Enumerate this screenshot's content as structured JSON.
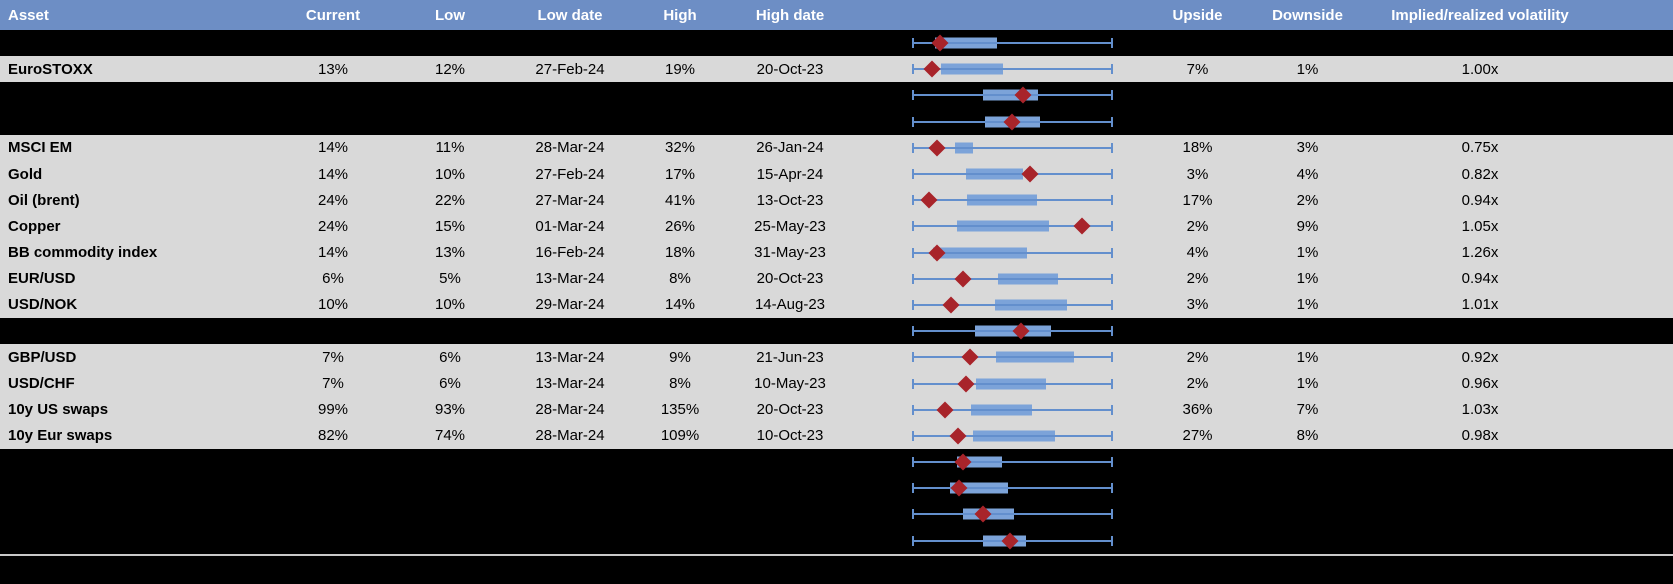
{
  "colors": {
    "header_bg": "#6d8ec5",
    "header_text": "#ffffff",
    "row_light_bg": "#d9d9d9",
    "row_dark_bg": "#000000",
    "box_fill": "#7ca3d9",
    "whisker_line": "#638fcd",
    "marker_diamond": "#a8242a",
    "bottom_separator": "#c9c9c9"
  },
  "chart_data": {
    "type": "table",
    "note": "Implied volatility table; each row has an embedded horizontal box-whisker plot with a red diamond marker (current level). Box/marker positions are normalized 0-1 across the plot axis; whiskers span the full axis on every row.",
    "columns": {
      "asset": "Asset",
      "current": "Current",
      "low": "Low",
      "low_date": "Low date",
      "high": "High",
      "high_date": "High date",
      "upside": "Upside",
      "downside": "Downside",
      "vol": "Implied/realized volatility"
    },
    "rows": [
      {
        "type": "spacer",
        "plot": {
          "box": [
            0.111,
            0.422
          ],
          "marker": 0.136
        }
      },
      {
        "type": "data",
        "asset": "EuroSTOXX",
        "current": "13%",
        "low": "12%",
        "low_date": "27-Feb-24",
        "high": "19%",
        "high_date": "20-Oct-23",
        "upside": "7%",
        "downside": "1%",
        "vol": "1.00x",
        "plot": {
          "box": [
            0.141,
            0.452
          ],
          "marker": 0.095
        }
      },
      {
        "type": "spacer",
        "plot": {
          "box": [
            0.352,
            0.628
          ],
          "marker": 0.553
        }
      },
      {
        "type": "spacer",
        "plot": {
          "box": [
            0.362,
            0.638
          ],
          "marker": 0.497
        }
      },
      {
        "type": "data",
        "asset": "MSCI EM",
        "current": "14%",
        "low": "11%",
        "low_date": "28-Mar-24",
        "high": "32%",
        "high_date": "26-Jan-24",
        "upside": "18%",
        "downside": "3%",
        "vol": "0.75x",
        "plot": {
          "box": [
            0.211,
            0.302
          ],
          "marker": 0.121
        }
      },
      {
        "type": "data",
        "asset": "Gold",
        "current": "14%",
        "low": "10%",
        "low_date": "27-Feb-24",
        "high": "17%",
        "high_date": "15-Apr-24",
        "upside": "3%",
        "downside": "4%",
        "vol": "0.82x",
        "plot": {
          "box": [
            0.266,
            0.553
          ],
          "marker": 0.588
        }
      },
      {
        "type": "data",
        "asset": "Oil (brent)",
        "current": "24%",
        "low": "22%",
        "low_date": "27-Mar-24",
        "high": "41%",
        "high_date": "13-Oct-23",
        "upside": "17%",
        "downside": "2%",
        "vol": "0.94x",
        "plot": {
          "box": [
            0.271,
            0.623
          ],
          "marker": 0.08
        }
      },
      {
        "type": "data",
        "asset": "Copper",
        "current": "24%",
        "low": "15%",
        "low_date": "01-Mar-24",
        "high": "26%",
        "high_date": "25-May-23",
        "upside": "2%",
        "downside": "9%",
        "vol": "1.05x",
        "plot": {
          "box": [
            0.221,
            0.683
          ],
          "marker": 0.849
        }
      },
      {
        "type": "data",
        "asset": "BB commodity index",
        "current": "14%",
        "low": "13%",
        "low_date": "16-Feb-24",
        "high": "18%",
        "high_date": "31-May-23",
        "upside": "4%",
        "downside": "1%",
        "vol": "1.26x",
        "plot": {
          "box": [
            0.101,
            0.573
          ],
          "marker": 0.121
        }
      },
      {
        "type": "data",
        "asset": "EUR/USD",
        "current": "6%",
        "low": "5%",
        "low_date": "13-Mar-24",
        "high": "8%",
        "high_date": "20-Oct-23",
        "upside": "2%",
        "downside": "1%",
        "vol": "0.94x",
        "plot": {
          "box": [
            0.427,
            0.729
          ],
          "marker": 0.251
        }
      },
      {
        "type": "data",
        "asset": "USD/NOK",
        "current": "10%",
        "low": "10%",
        "low_date": "29-Mar-24",
        "high": "14%",
        "high_date": "14-Aug-23",
        "upside": "3%",
        "downside": "1%",
        "vol": "1.01x",
        "plot": {
          "box": [
            0.412,
            0.774
          ],
          "marker": 0.191
        }
      },
      {
        "type": "spacer",
        "plot": {
          "box": [
            0.312,
            0.693
          ],
          "marker": 0.543
        }
      },
      {
        "type": "data",
        "asset": "GBP/USD",
        "current": "7%",
        "low": "6%",
        "low_date": "13-Mar-24",
        "high": "9%",
        "high_date": "21-Jun-23",
        "upside": "2%",
        "downside": "1%",
        "vol": "0.92x",
        "plot": {
          "box": [
            0.417,
            0.809
          ],
          "marker": 0.286
        }
      },
      {
        "type": "data",
        "asset": "USD/CHF",
        "current": "7%",
        "low": "6%",
        "low_date": "13-Mar-24",
        "high": "8%",
        "high_date": "10-May-23",
        "upside": "2%",
        "downside": "1%",
        "vol": "0.96x",
        "plot": {
          "box": [
            0.317,
            0.668
          ],
          "marker": 0.266
        }
      },
      {
        "type": "data",
        "asset": "10y US swaps",
        "current": "99%",
        "low": "93%",
        "low_date": "28-Mar-24",
        "high": "135%",
        "high_date": "20-Oct-23",
        "upside": "36%",
        "downside": "7%",
        "vol": "1.03x",
        "plot": {
          "box": [
            0.291,
            0.598
          ],
          "marker": 0.161
        }
      },
      {
        "type": "data",
        "asset": "10y Eur swaps",
        "current": "82%",
        "low": "74%",
        "low_date": "28-Mar-24",
        "high": "109%",
        "high_date": "10-Oct-23",
        "upside": "27%",
        "downside": "8%",
        "vol": "0.98x",
        "plot": {
          "box": [
            0.302,
            0.714
          ],
          "marker": 0.226
        }
      },
      {
        "type": "spacer",
        "plot": {
          "box": [
            0.221,
            0.447
          ],
          "marker": 0.251
        }
      },
      {
        "type": "spacer",
        "plot": {
          "box": [
            0.186,
            0.477
          ],
          "marker": 0.231
        }
      },
      {
        "type": "spacer",
        "plot": {
          "box": [
            0.251,
            0.508
          ],
          "marker": 0.352
        }
      },
      {
        "type": "spacer",
        "plot": {
          "box": [
            0.352,
            0.568
          ],
          "marker": 0.487
        }
      }
    ]
  }
}
